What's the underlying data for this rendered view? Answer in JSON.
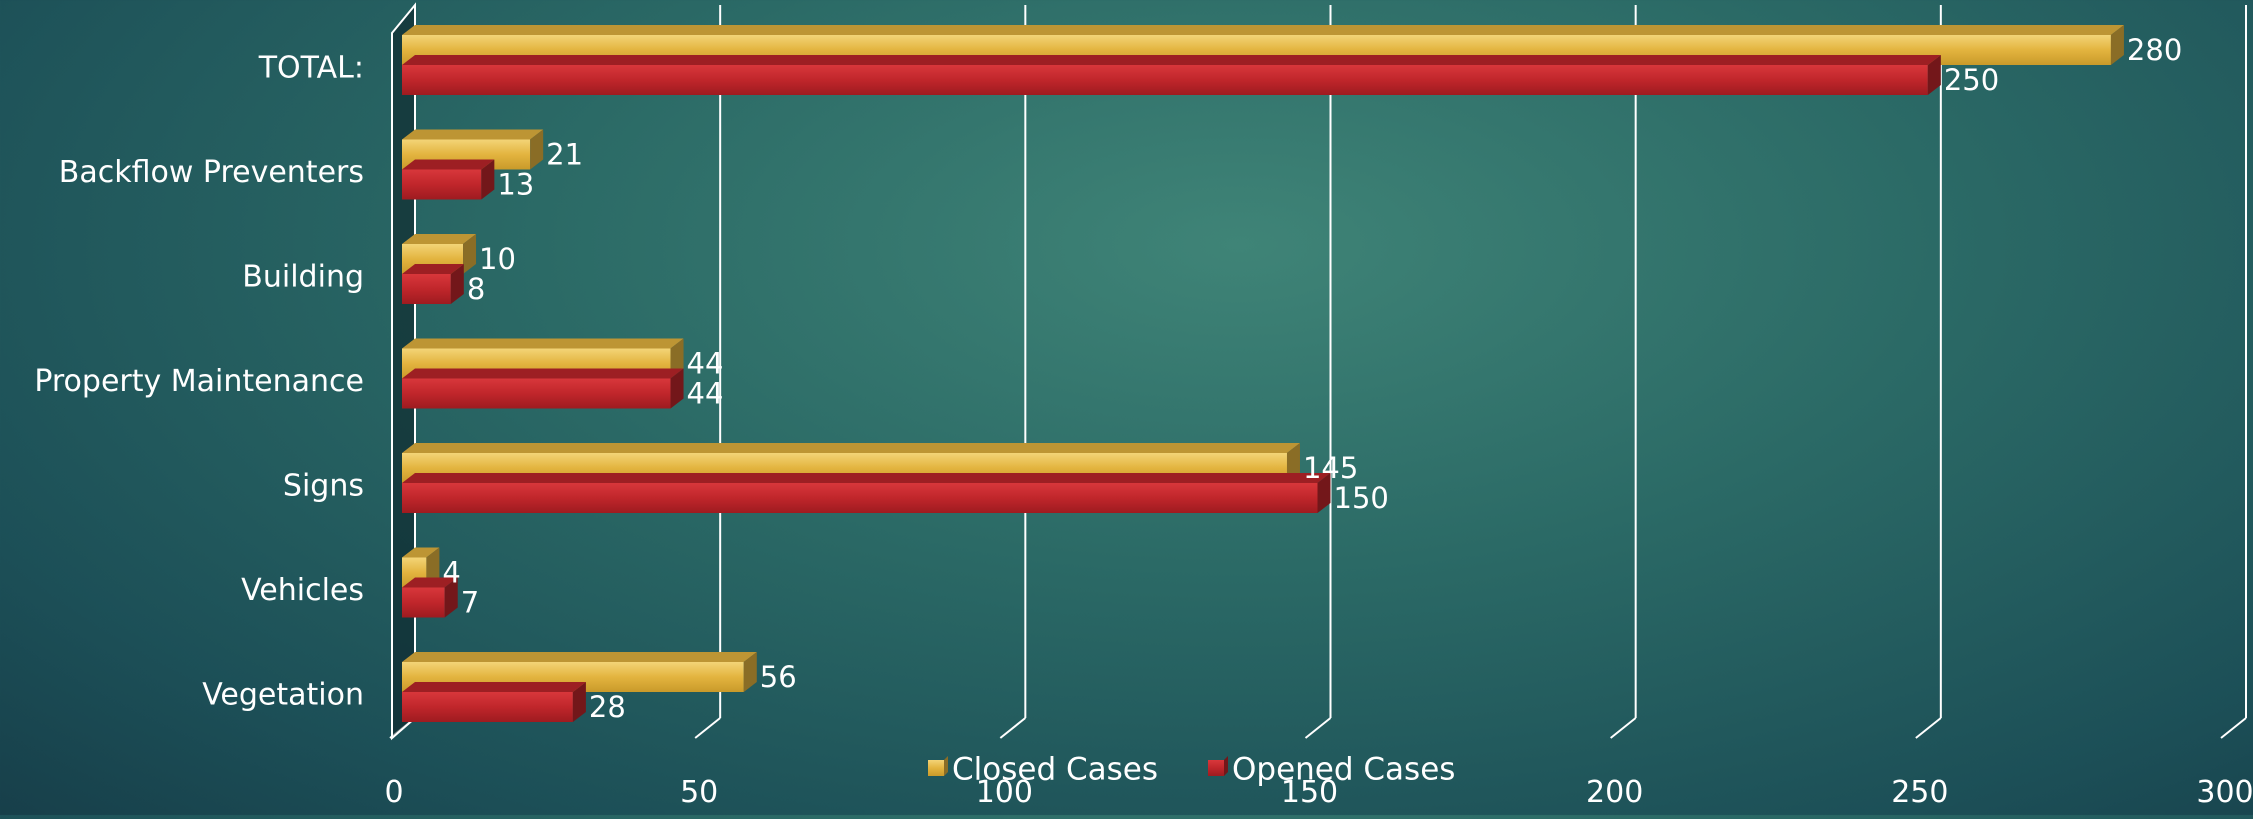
{
  "chart_data": {
    "type": "bar",
    "orientation": "horizontal",
    "categories": [
      "TOTAL:",
      "Backflow Preventers",
      "Building",
      "Property Maintenance",
      "Signs",
      "Vehicles",
      "Vegetation"
    ],
    "series": [
      {
        "name": "Closed Cases",
        "values": [
          280,
          21,
          10,
          44,
          145,
          4,
          56
        ],
        "color": "#e6b63f"
      },
      {
        "name": "Opened Cases",
        "values": [
          250,
          13,
          8,
          44,
          150,
          7,
          28
        ],
        "color": "#c0262b"
      }
    ],
    "x_ticks": [
      "0",
      "50",
      "100",
      "150",
      "200",
      "250",
      "300"
    ],
    "xlim": [
      0,
      300
    ],
    "grid": true,
    "legend_position": "bottom",
    "style": "3d"
  }
}
